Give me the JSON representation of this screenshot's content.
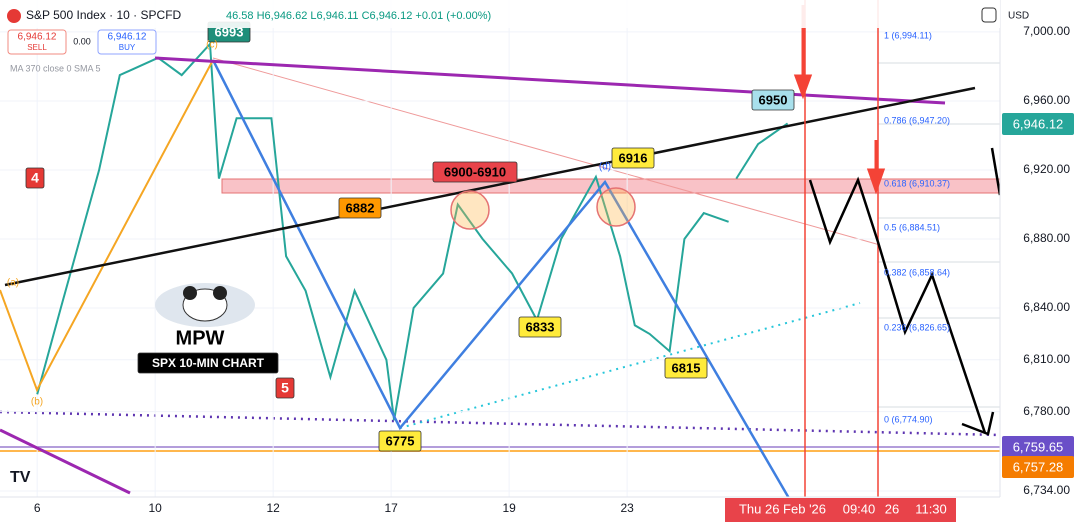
{
  "chart_data": {
    "type": "line",
    "title": "S&P 500 Index · 10 · SPCFD",
    "ohlc": "46.58 H6,946.62 L6,946.11 C6,946.12 +0.01 (+0.00%)",
    "indicator": "MA 370 close 0 SMA 5",
    "sell_price": "6,946.12",
    "sell_label": "SELL",
    "spread": "0.00",
    "buy_price": "6,946.12",
    "buy_label": "BUY",
    "currency": "USD",
    "x": [
      0,
      0.4,
      1.05,
      1.4,
      2.05,
      2.45,
      2.93,
      3.08,
      3.38,
      3.97,
      4.22,
      4.55,
      4.97,
      5.38,
      5.92,
      6.05,
      6.38,
      6.88,
      7.13,
      7.55,
      8.05,
      8.47,
      8.88,
      9.47,
      9.88,
      10.13,
      10.38,
      10.72,
      10.97,
      11.3,
      11.72,
      11.8,
      11.85,
      12.22,
      12.72
    ],
    "series": [
      {
        "name": "SPX",
        "color": "#26a69a",
        "values": [
          6790,
          6840,
          6920,
          6975,
          6985,
          6975,
          6993,
          6915,
          6950,
          6950,
          6870,
          6850,
          6800,
          6850,
          6810,
          6775,
          6840,
          6860,
          6900,
          6880,
          6860,
          6833,
          6880,
          6916,
          6870,
          6830,
          6825,
          6815,
          6880,
          6895,
          6890,
          null,
          6915,
          6935,
          6947
        ]
      }
    ],
    "xlim": [
      -0.63,
      16.32
    ],
    "xticks": [
      {
        "value": 0,
        "label": "6"
      },
      {
        "value": 2,
        "label": "10"
      },
      {
        "value": 4,
        "label": "12"
      },
      {
        "value": 6,
        "label": "17"
      },
      {
        "value": 8,
        "label": "19"
      },
      {
        "value": 10,
        "label": "23"
      }
    ],
    "ylim": [
      6730.5,
      7018.5
    ],
    "yticks": [
      {
        "value": 7000,
        "label": "7,000.00"
      },
      {
        "value": 6960,
        "label": "6,960.00"
      },
      {
        "value": 6920,
        "label": "6,920.00"
      },
      {
        "value": 6880,
        "label": "6,880.00"
      },
      {
        "value": 6840,
        "label": "6,840.00"
      },
      {
        "value": 6810,
        "label": "6,810.00"
      },
      {
        "value": 6780,
        "label": "6,780.00"
      },
      {
        "value": 6734,
        "label": "6,734.00"
      }
    ],
    "price_tags": [
      "6,946.12",
      "6,759.65",
      "6,757.28"
    ],
    "fib_labels": [
      "1 (6,994.11)",
      "0.786 (6,947.20)",
      "0.618 (6,910.37)",
      "0.5 (6,884.51)",
      "0.382 (6,858.64)",
      "0.236 (6,826.65)",
      "0 (6,774.90)"
    ],
    "annotations": [
      "6993",
      "6950",
      "6916",
      "6900-6910",
      "6882",
      "6833",
      "6815",
      "6775",
      "4",
      "5",
      "MPW",
      "SPX 10-MIN CHART",
      "(a)",
      "(b)",
      "(c)",
      "(d)"
    ],
    "time_labels": [
      "Thu 26 Feb '26",
      "09:40",
      "26",
      "11:30"
    ]
  }
}
